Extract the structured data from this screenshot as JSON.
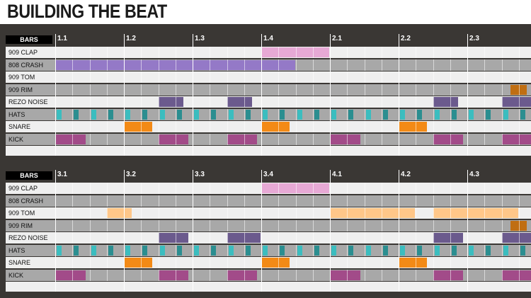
{
  "title": "BUILDING THE BEAT",
  "bars_label": "BARS",
  "colors": {
    "clap": "#e7a9d5",
    "crash": "#9479c7",
    "tom": "#ffc789",
    "rim": "#c06e12",
    "noise": "#6b5a8d",
    "hats_a": "#3bbdbf",
    "hats_b": "#2b8e90",
    "snare": "#f38a16",
    "kick": "#a24b89"
  },
  "tracks": [
    {
      "name": "909 CLAP",
      "key": "clap"
    },
    {
      "name": "808 CRASH",
      "key": "crash"
    },
    {
      "name": "909 TOM",
      "key": "tom"
    },
    {
      "name": "909 RIM",
      "key": "rim"
    },
    {
      "name": "REZO NOISE",
      "key": "noise"
    },
    {
      "name": "HATS",
      "key": "hats"
    },
    {
      "name": "SNARE",
      "key": "snare"
    },
    {
      "name": "KICK",
      "key": "kick"
    }
  ],
  "panels": [
    {
      "ticks": [
        "1.1",
        "1.2",
        "1.3",
        "1.4",
        "2.1",
        "2.2",
        "2.3"
      ],
      "blocks": {
        "clap": [
          [
            12,
            16
          ]
        ],
        "crash": [
          [
            0,
            14
          ]
        ],
        "tom": [],
        "rim": [
          [
            26.5,
            27.5
          ]
        ],
        "noise": [
          [
            6,
            7.5
          ],
          [
            10,
            11.5
          ],
          [
            22,
            23.5
          ],
          [
            26,
            28
          ]
        ],
        "snare": [
          [
            4,
            5.7
          ],
          [
            12,
            13.7
          ],
          [
            20,
            21.7
          ]
        ],
        "kick": [
          [
            0,
            1.8
          ],
          [
            6,
            7.8
          ],
          [
            10,
            11.8
          ],
          [
            16,
            17.8
          ],
          [
            22,
            23.8
          ],
          [
            26,
            28
          ]
        ]
      }
    },
    {
      "ticks": [
        "3.1",
        "3.2",
        "3.3",
        "3.4",
        "4.1",
        "4.2",
        "4.3"
      ],
      "blocks": {
        "clap": [
          [
            12,
            16
          ]
        ],
        "crash": [],
        "tom": [
          [
            3,
            4.5
          ],
          [
            16,
            21
          ],
          [
            22,
            27
          ]
        ],
        "rim": [
          [
            26.5,
            27.5
          ]
        ],
        "noise": [
          [
            6,
            7.8
          ],
          [
            10,
            12
          ],
          [
            22,
            23.8
          ],
          [
            26,
            28
          ]
        ],
        "snare": [
          [
            4,
            5.7
          ],
          [
            12,
            13.7
          ],
          [
            20,
            21.7
          ]
        ],
        "kick": [
          [
            0,
            1.8
          ],
          [
            6,
            7.8
          ],
          [
            10,
            11.8
          ],
          [
            16,
            17.8
          ],
          [
            22,
            23.8
          ],
          [
            26,
            28
          ]
        ]
      }
    }
  ]
}
